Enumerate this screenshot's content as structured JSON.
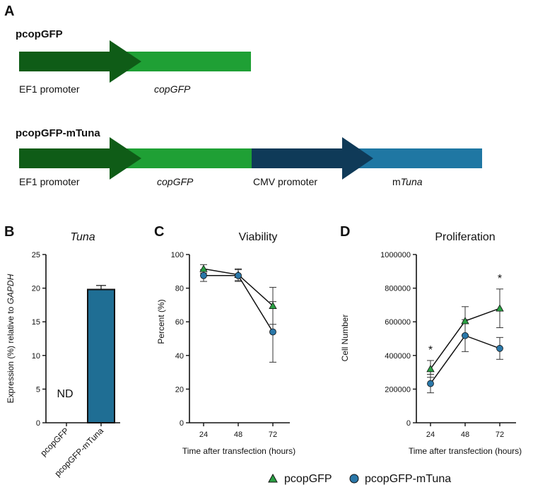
{
  "panels": {
    "A": "A",
    "B": "B",
    "C": "C",
    "D": "D"
  },
  "constructs": [
    {
      "name": "pcopGFP",
      "parts": [
        {
          "label": "EF1 promoter",
          "italic": false,
          "color": "#0f5c17"
        },
        {
          "label": "copGFP",
          "italic": true,
          "color": "#1fa035"
        }
      ]
    },
    {
      "name": "pcopGFP-mTuna",
      "parts": [
        {
          "label": "EF1 promoter",
          "italic": false,
          "color": "#0f5c17"
        },
        {
          "label": "copGFP",
          "italic": true,
          "color": "#1fa035"
        },
        {
          "label": "CMV promoter",
          "italic": false,
          "color": "#0f3a58"
        },
        {
          "label_prefix": "m",
          "label_italic": "Tuna",
          "color": "#1f77a3"
        }
      ]
    }
  ],
  "chart_data": [
    {
      "type": "bar",
      "title": "Tuna",
      "ylabel_prefix": "Expression (%) relative to ",
      "ylabel_italic": "GAPDH",
      "categories": [
        "pcopGFP",
        "pcopGFP-mTuna"
      ],
      "values": [
        0,
        19.8
      ],
      "errors": [
        0,
        0.6
      ],
      "annotations": [
        "ND",
        ""
      ],
      "ylim": [
        0,
        25
      ],
      "yticks": [
        "0",
        "5",
        "10",
        "15",
        "20",
        "25"
      ],
      "bar_color": "#1f6e94"
    },
    {
      "type": "line",
      "title": "Viability",
      "xlabel": "Time after transfection (hours)",
      "ylabel": "Percent (%)",
      "x": [
        24,
        48,
        72
      ],
      "xticks": [
        "24",
        "48",
        "72"
      ],
      "ylim": [
        0,
        100
      ],
      "yticks": [
        "0",
        "20",
        "40",
        "60",
        "80",
        "100"
      ],
      "series": [
        {
          "name": "pcopGFP",
          "values": [
            91.5,
            88,
            69.5
          ],
          "errors": [
            2.5,
            3.5,
            11
          ]
        },
        {
          "name": "pcopGFP-mTuna",
          "values": [
            87.5,
            87.5,
            54
          ],
          "errors": [
            3.5,
            3.5,
            18
          ]
        }
      ]
    },
    {
      "type": "line",
      "title": "Proliferation",
      "xlabel": "Time after transfection (hours)",
      "ylabel": "Cell Number",
      "x": [
        24,
        48,
        72
      ],
      "xticks": [
        "24",
        "48",
        "72"
      ],
      "ylim": [
        0,
        1000000
      ],
      "yticks": [
        "0",
        "200000",
        "400000",
        "600000",
        "800000",
        "1000000"
      ],
      "series": [
        {
          "name": "pcopGFP",
          "values": [
            320000,
            605000,
            680000
          ],
          "errors": [
            50000,
            85000,
            115000
          ]
        },
        {
          "name": "pcopGFP-mTuna",
          "values": [
            233000,
            518000,
            442000
          ],
          "errors": [
            55000,
            95000,
            65000
          ]
        }
      ],
      "significance": [
        "*",
        "",
        "*"
      ]
    }
  ],
  "legend": {
    "items": [
      {
        "label": "pcopGFP",
        "marker": "triangle",
        "color": "#2aa043"
      },
      {
        "label": "pcopGFP-mTuna",
        "marker": "circle",
        "color": "#2a77a8"
      }
    ]
  }
}
